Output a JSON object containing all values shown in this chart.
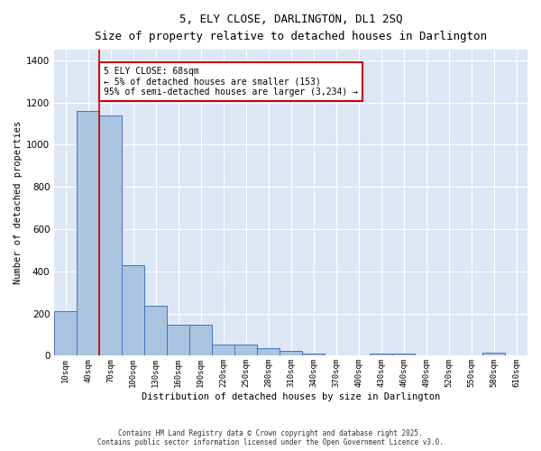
{
  "title": "5, ELY CLOSE, DARLINGTON, DL1 2SQ",
  "subtitle": "Size of property relative to detached houses in Darlington",
  "xlabel": "Distribution of detached houses by size in Darlington",
  "ylabel": "Number of detached properties",
  "categories": [
    "10sqm",
    "40sqm",
    "70sqm",
    "100sqm",
    "130sqm",
    "160sqm",
    "190sqm",
    "220sqm",
    "250sqm",
    "280sqm",
    "310sqm",
    "340sqm",
    "370sqm",
    "400sqm",
    "430sqm",
    "460sqm",
    "490sqm",
    "520sqm",
    "550sqm",
    "580sqm",
    "610sqm"
  ],
  "values": [
    210,
    1160,
    1140,
    430,
    235,
    145,
    145,
    55,
    55,
    38,
    25,
    12,
    0,
    0,
    12,
    12,
    0,
    0,
    0,
    15,
    0
  ],
  "bar_color": "#aac4e0",
  "bar_edge_color": "#4472c4",
  "background_color": "#dce6f5",
  "grid_color": "#ffffff",
  "annotation_text": "5 ELY CLOSE: 68sqm\n← 5% of detached houses are smaller (153)\n95% of semi-detached houses are larger (3,234) →",
  "annotation_box_color": "#ffffff",
  "annotation_box_edge": "#cc0000",
  "ylim": [
    0,
    1450
  ],
  "red_line_x": 1.5,
  "footer_line1": "Contains HM Land Registry data © Crown copyright and database right 2025.",
  "footer_line2": "Contains public sector information licensed under the Open Government Licence v3.0."
}
